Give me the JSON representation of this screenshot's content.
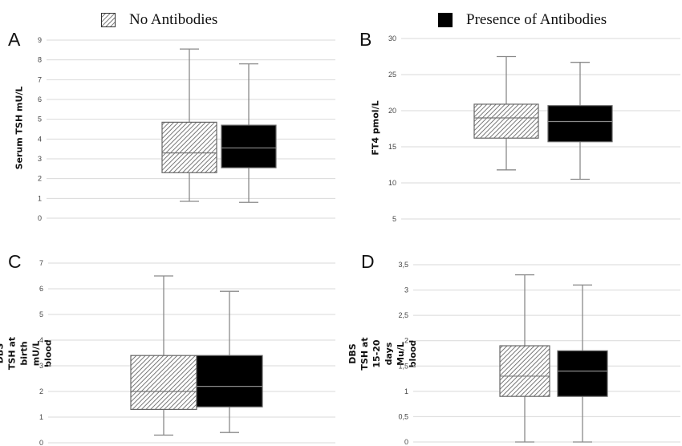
{
  "legend": {
    "items": [
      {
        "label": "No Antibodies",
        "pattern": "hatched"
      },
      {
        "label": "Presence of Antibodies",
        "pattern": "solid",
        "color": "#000000"
      }
    ]
  },
  "chart_data": [
    {
      "panel": "A",
      "type": "boxplot",
      "ylabel": "Serum TSH mU/L",
      "ylim": [
        0,
        9
      ],
      "yticks": [
        "0",
        "1",
        "2",
        "3",
        "4",
        "5",
        "6",
        "7",
        "8",
        "9"
      ],
      "grid": true,
      "series": [
        {
          "name": "No Antibodies",
          "min": 0.85,
          "q1": 2.3,
          "median": 3.3,
          "q3": 4.85,
          "max": 8.55
        },
        {
          "name": "Presence of Antibodies",
          "min": 0.8,
          "q1": 2.55,
          "median": 3.55,
          "q3": 4.7,
          "max": 7.8
        }
      ]
    },
    {
      "panel": "B",
      "type": "boxplot",
      "ylabel": "FT4 pmol/L",
      "ylim": [
        5,
        30
      ],
      "yticks": [
        "5",
        "10",
        "15",
        "20",
        "25",
        "30"
      ],
      "grid": true,
      "series": [
        {
          "name": "No Antibodies",
          "min": 11.8,
          "q1": 16.2,
          "median": 19.0,
          "q3": 20.9,
          "max": 27.5
        },
        {
          "name": "Presence of Antibodies",
          "min": 10.5,
          "q1": 15.7,
          "median": 18.5,
          "q3": 20.7,
          "max": 26.7
        }
      ]
    },
    {
      "panel": "C",
      "type": "boxplot",
      "ylabel": "DBS TSH at birth mU/L blood",
      "ylim": [
        0,
        7
      ],
      "yticks": [
        "0",
        "1",
        "2",
        "3",
        "4",
        "5",
        "6",
        "7"
      ],
      "grid": true,
      "series": [
        {
          "name": "No Antibodies",
          "min": 0.3,
          "q1": 1.3,
          "median": 2.0,
          "q3": 3.4,
          "max": 6.5
        },
        {
          "name": "Presence of Antibodies",
          "min": 0.4,
          "q1": 1.4,
          "median": 2.2,
          "q3": 3.4,
          "max": 5.9
        }
      ]
    },
    {
      "panel": "D",
      "type": "boxplot",
      "ylabel": "DBS TSH at 15-20 days Mu/L blood",
      "ylim": [
        0,
        3.5
      ],
      "yticks": [
        "0",
        "0,5",
        "1",
        "1,5",
        "2",
        "2,5",
        "3",
        "3,5"
      ],
      "grid": true,
      "series": [
        {
          "name": "No Antibodies",
          "min": 0.0,
          "q1": 0.9,
          "median": 1.3,
          "q3": 1.9,
          "max": 3.3
        },
        {
          "name": "Presence of Antibodies",
          "min": 0.0,
          "q1": 0.9,
          "median": 1.4,
          "q3": 1.8,
          "max": 3.1
        }
      ]
    }
  ]
}
